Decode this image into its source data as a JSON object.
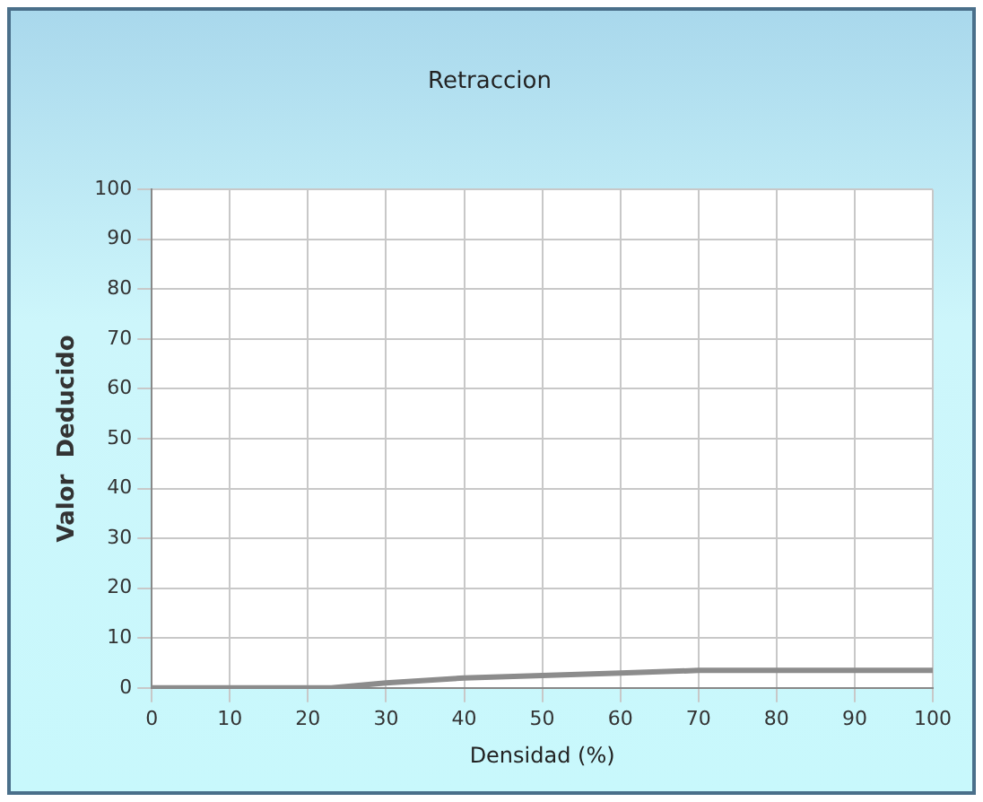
{
  "chart_data": {
    "type": "line",
    "title": "Retraccion",
    "xlabel": "Densidad (%)",
    "ylabel": "Valor  Deducido",
    "x": [
      0,
      10,
      20,
      23,
      30,
      40,
      50,
      60,
      70,
      80,
      90,
      100
    ],
    "series": [
      {
        "color": "#8c8c8c",
        "values": [
          0,
          0,
          0,
          0,
          1,
          2,
          2.5,
          3,
          3.5,
          3.5,
          3.5,
          3.5
        ]
      }
    ],
    "xlim": [
      0,
      100
    ],
    "xticks": [
      0,
      10,
      20,
      30,
      40,
      50,
      60,
      70,
      80,
      90,
      100
    ],
    "ylim": [
      0,
      100
    ],
    "yticks": [
      0,
      10,
      20,
      30,
      40,
      50,
      60,
      70,
      80,
      90,
      100
    ],
    "grid": true,
    "marker": "none",
    "line_style": "solid"
  }
}
